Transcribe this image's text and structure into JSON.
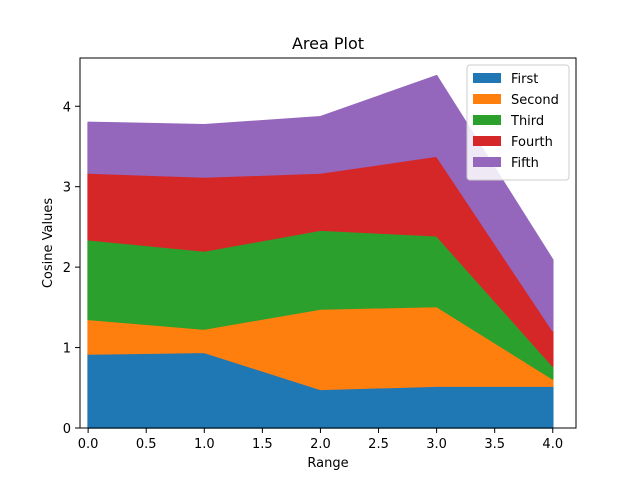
{
  "chart_data": {
    "type": "area",
    "stacked": true,
    "title": "Area Plot",
    "xlabel": "Range",
    "ylabel": "Cosine Values",
    "x": [
      0,
      1,
      2,
      3,
      4
    ],
    "xlim": [
      -0.07,
      4.2
    ],
    "ylim": [
      0,
      4.6
    ],
    "xticks": [
      "0.0",
      "0.5",
      "1.0",
      "1.5",
      "2.0",
      "2.5",
      "3.0",
      "3.5",
      "4.0"
    ],
    "yticks": [
      "0",
      "1",
      "2",
      "3",
      "4"
    ],
    "grid": false,
    "legend_position": "top-right",
    "series": [
      {
        "name": "First",
        "color": "#1f77b4",
        "values": [
          0.92,
          0.94,
          0.48,
          0.52,
          0.52
        ]
      },
      {
        "name": "Second",
        "color": "#ff7f0e",
        "values": [
          0.43,
          0.29,
          1.0,
          0.99,
          0.09
        ]
      },
      {
        "name": "Third",
        "color": "#2ca02c",
        "values": [
          0.99,
          0.97,
          0.98,
          0.88,
          0.16
        ]
      },
      {
        "name": "Fourth",
        "color": "#d62728",
        "values": [
          0.83,
          0.92,
          0.71,
          0.99,
          0.44
        ]
      },
      {
        "name": "Fifth",
        "color": "#9467bd",
        "values": [
          0.63,
          0.65,
          0.7,
          1.0,
          0.88
        ]
      }
    ]
  }
}
